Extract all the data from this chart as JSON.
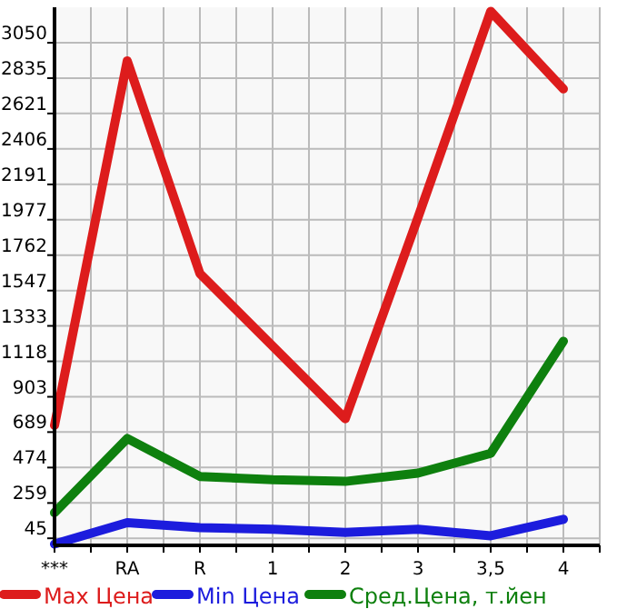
{
  "chart_data": {
    "type": "line",
    "categories": [
      "***",
      "RA",
      "R",
      "1",
      "2",
      "3",
      "3,5",
      "4"
    ],
    "series": [
      {
        "name": "Max Цена",
        "color": "#dd1c1c",
        "values": [
          730,
          2940,
          1650,
          1210,
          770,
          1990,
          3240,
          2770
        ]
      },
      {
        "name": "Min Цена",
        "color": "#1c1cdd",
        "values": [
          10,
          140,
          110,
          100,
          80,
          100,
          60,
          160
        ]
      },
      {
        "name": "Сред.Цена, т.йен",
        "color": "#0e800e",
        "values": [
          200,
          650,
          420,
          400,
          390,
          440,
          560,
          1240
        ]
      }
    ],
    "ylim": [
      2,
      3265
    ],
    "yticks": [
      45,
      259,
      474,
      689,
      903,
      1118,
      1333,
      1547,
      1762,
      1977,
      2191,
      2406,
      2621,
      2835,
      3050
    ],
    "grid": true,
    "legend": "bottom",
    "marker": "none",
    "line_style": "solid"
  }
}
